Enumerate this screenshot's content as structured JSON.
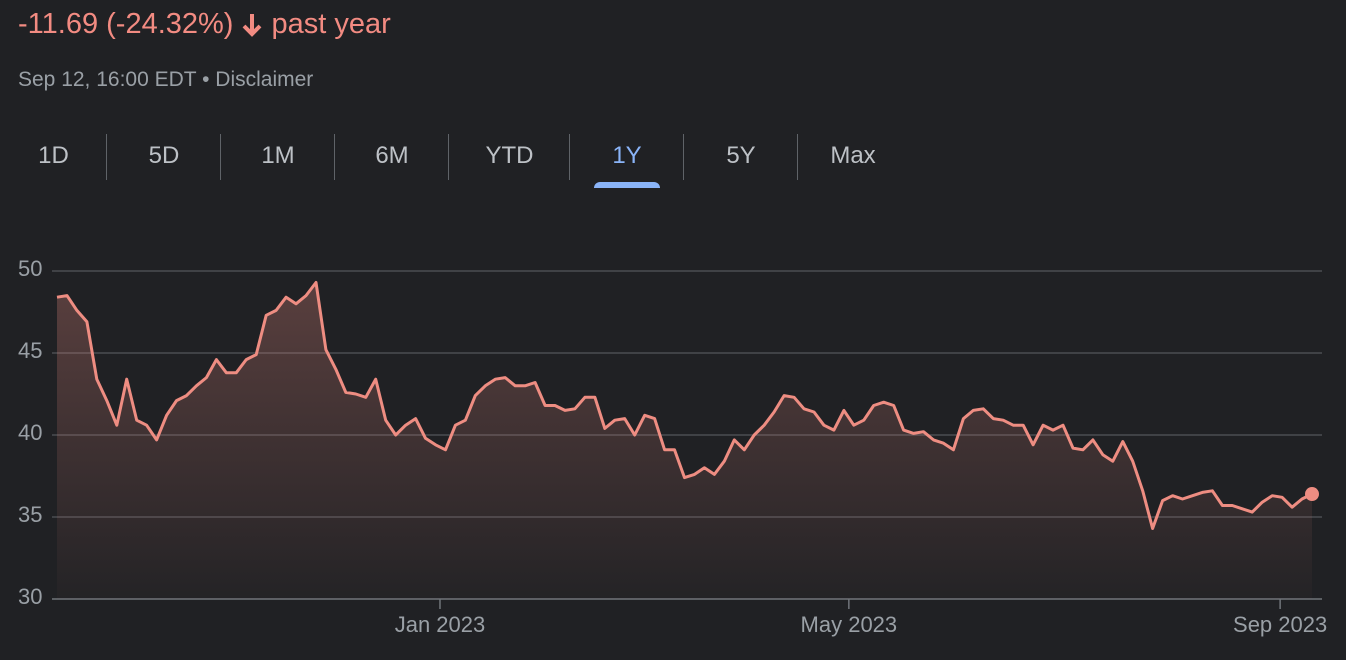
{
  "header": {
    "change": "-11.69 (-24.32%)",
    "period": "past year",
    "timestamp": "Sep 12, 16:00 EDT",
    "separator": "•",
    "disclaimer": "Disclaimer"
  },
  "tabs": {
    "items": [
      "1D",
      "5D",
      "1M",
      "6M",
      "YTD",
      "1Y",
      "5Y",
      "Max"
    ],
    "active": "1Y"
  },
  "chart_data": {
    "type": "line",
    "series": [
      {
        "color": "#ee8d82",
        "values": [
          48.4,
          48.5,
          47.6,
          46.9,
          43.4,
          42.1,
          40.6,
          43.4,
          40.9,
          40.6,
          39.7,
          41.2,
          42.1,
          42.4,
          43.0,
          43.5,
          44.6,
          43.8,
          43.8,
          44.6,
          44.9,
          47.3,
          47.6,
          48.4,
          48.0,
          48.5,
          49.3,
          45.2,
          44.0,
          42.6,
          42.5,
          42.3,
          43.4,
          40.9,
          40.0,
          40.6,
          41.0,
          39.8,
          39.4,
          39.1,
          40.6,
          40.9,
          42.4,
          43.0,
          43.4,
          43.5,
          43.0,
          43.0,
          43.2,
          41.8,
          41.8,
          41.5,
          41.6,
          42.3,
          42.3,
          40.4,
          40.9,
          41.0,
          40.0,
          41.2,
          41.0,
          39.1,
          39.1,
          37.4,
          37.6,
          38.0,
          37.6,
          38.4,
          39.7,
          39.1,
          40.0,
          40.6,
          41.4,
          42.4,
          42.3,
          41.6,
          41.4,
          40.6,
          40.3,
          41.5,
          40.6,
          40.9,
          41.8,
          42.0,
          41.8,
          40.3,
          40.1,
          40.2,
          39.7,
          39.5,
          39.1,
          41.0,
          41.5,
          41.6,
          41.0,
          40.9,
          40.6,
          40.6,
          39.4,
          40.6,
          40.3,
          40.6,
          39.2,
          39.1,
          39.7,
          38.8,
          38.4,
          39.6,
          38.4,
          36.6,
          34.3,
          36.0,
          36.3,
          36.1,
          36.3,
          36.5,
          36.6,
          35.7,
          35.7,
          35.5,
          35.3,
          35.9,
          36.3,
          36.2,
          35.6,
          36.1,
          36.4
        ]
      }
    ],
    "xlim": [
      0,
      126
    ],
    "xticks": [
      {
        "value": 38.45,
        "label": "Jan 2023"
      },
      {
        "value": 79.5,
        "label": "May 2023"
      },
      {
        "value": 122.8,
        "label": "Sep 2023"
      }
    ],
    "ylim": [
      30,
      50
    ],
    "yticks": [
      30,
      35,
      40,
      45,
      50
    ],
    "grid": true
  }
}
